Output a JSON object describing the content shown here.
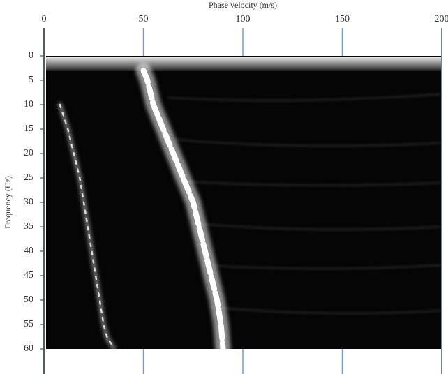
{
  "chart_data": {
    "type": "line",
    "xlabel": "Phase velocity (m/s)",
    "ylabel": "Frequency (Hz)",
    "xlim": [
      0,
      200
    ],
    "xticks": [
      0,
      50,
      100,
      150,
      200
    ],
    "ylim": [
      -5,
      65
    ],
    "yticks": [
      0,
      5,
      10,
      15,
      20,
      25,
      30,
      35,
      40,
      45,
      50,
      55,
      60
    ],
    "y_inverted": true,
    "grid": true,
    "grid_color": "#6a9fd8",
    "series": [
      {
        "color": "#ffffff",
        "x": [
          50,
          52,
          55,
          60,
          65,
          70,
          75,
          78,
          81,
          84,
          87,
          89,
          90
        ],
        "values": [
          3,
          5,
          10,
          15,
          20,
          25,
          30,
          35,
          40,
          45,
          50,
          55,
          60
        ]
      },
      {
        "color": "#d8d8d8",
        "x": [
          8,
          12,
          15,
          18,
          20,
          22,
          24,
          26,
          28,
          30,
          32,
          34,
          35
        ],
        "values": [
          10,
          15,
          20,
          25,
          30,
          35,
          40,
          45,
          50,
          55,
          58,
          59,
          60
        ]
      }
    ]
  }
}
